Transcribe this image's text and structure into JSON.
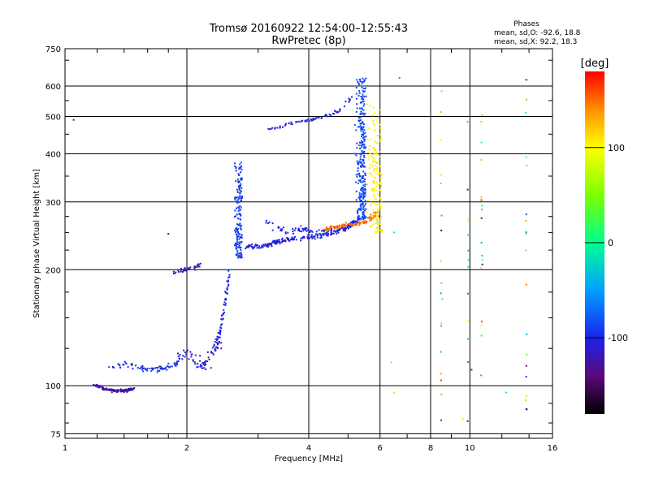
{
  "chart_data": {
    "type": "scatter",
    "title_line1": "Tromsø 20160922 12:54:00–12:55:43",
    "title_line2": "RwPretec (8p)",
    "stats": {
      "header": "Phases",
      "line_o": "mean, sd,O: -92.6, 18.8",
      "line_x": "mean, sd,X:  92.2, 18.3"
    },
    "xlabel": "Frequency [MHz]",
    "ylabel": "Stationary phase Virtual Height [km]",
    "x_scale": "log",
    "y_scale": "log",
    "xlim": [
      1,
      16
    ],
    "ylim": [
      73,
      750
    ],
    "x_ticks": [
      {
        "value": 1,
        "label": "1"
      },
      {
        "value": 2,
        "label": "2"
      },
      {
        "value": 4,
        "label": "4"
      },
      {
        "value": 6,
        "label": "6"
      },
      {
        "value": 8,
        "label": "8"
      },
      {
        "value": 10,
        "label": "10"
      },
      {
        "value": 16,
        "label": "16"
      }
    ],
    "y_ticks": [
      {
        "value": 75,
        "label": "75"
      },
      {
        "value": 100,
        "label": "100"
      },
      {
        "value": 200,
        "label": "200"
      },
      {
        "value": 300,
        "label": "300"
      },
      {
        "value": 400,
        "label": "400"
      },
      {
        "value": 500,
        "label": "500"
      },
      {
        "value": 600,
        "label": "600"
      },
      {
        "value": 750,
        "label": "750"
      }
    ],
    "x_grid": [
      1,
      2,
      4,
      6,
      8,
      10,
      16
    ],
    "y_grid": [
      75,
      100,
      200,
      300,
      400,
      500,
      600,
      750
    ],
    "grid": true,
    "colorbar": {
      "label": "deg",
      "min": -180,
      "max": 180,
      "ticks": [
        {
          "value": 100,
          "label": "100"
        },
        {
          "value": 0,
          "label": "0"
        },
        {
          "value": -100,
          "label": "-100"
        }
      ],
      "stops": [
        {
          "value": -180,
          "color": "#000000"
        },
        {
          "value": -140,
          "color": "#5a0a78"
        },
        {
          "value": -100,
          "color": "#1a22ee"
        },
        {
          "value": -50,
          "color": "#00a0ff"
        },
        {
          "value": 0,
          "color": "#00ff90"
        },
        {
          "value": 50,
          "color": "#7cff00"
        },
        {
          "value": 100,
          "color": "#ffff00"
        },
        {
          "value": 140,
          "color": "#ff9000"
        },
        {
          "value": 180,
          "color": "#ff0000"
        }
      ]
    },
    "clusters": [
      {
        "name": "low-e",
        "kind": "line",
        "phase": -125,
        "x": [
          1.18,
          1.25,
          1.32,
          1.4,
          1.48
        ],
        "y": [
          101,
          98,
          97,
          97,
          98
        ],
        "n": 130,
        "xj": 0.012,
        "yj": 0.012
      },
      {
        "name": "e-rise-a",
        "kind": "line",
        "phase": -95,
        "x": [
          1.3,
          1.4,
          1.5,
          1.6,
          1.7,
          1.8,
          1.9
        ],
        "y": [
          112,
          114,
          112,
          110,
          110,
          112,
          115
        ],
        "n": 75,
        "xj": 0.02,
        "yj": 0.025
      },
      {
        "name": "e-rise-b",
        "kind": "line",
        "phase": -110,
        "x": [
          1.9,
          2.0,
          2.1,
          2.2,
          2.3,
          2.4
        ],
        "y": [
          118,
          122,
          116,
          112,
          120,
          130
        ],
        "n": 70,
        "xj": 0.03,
        "yj": 0.05
      },
      {
        "name": "e-cusp",
        "kind": "line",
        "phase": -100,
        "x": [
          2.3,
          2.4,
          2.45,
          2.5,
          2.55
        ],
        "y": [
          125,
          135,
          150,
          170,
          200
        ],
        "n": 55,
        "xj": 0.01,
        "yj": 0.04
      },
      {
        "name": "es-200",
        "kind": "line",
        "phase": -120,
        "x": [
          1.85,
          1.95,
          2.05,
          2.15
        ],
        "y": [
          197,
          200,
          202,
          205
        ],
        "n": 40,
        "xj": 0.015,
        "yj": 0.02
      },
      {
        "name": "f1-cusp",
        "kind": "cloud",
        "phase": -90,
        "x": [
          2.55,
          2.75
        ],
        "y": [
          215,
          380
        ],
        "n": 170
      },
      {
        "name": "f-trace",
        "kind": "line",
        "phase": -105,
        "x": [
          2.8,
          3.1,
          3.4,
          3.8,
          4.2,
          4.6,
          5.0,
          5.3
        ],
        "y": [
          230,
          230,
          238,
          242,
          244,
          250,
          258,
          270
        ],
        "n": 220,
        "xj": 0.015,
        "yj": 0.02
      },
      {
        "name": "f-upper-a",
        "kind": "line",
        "phase": -100,
        "x": [
          3.1,
          3.5,
          3.9,
          4.3,
          4.7
        ],
        "y": [
          270,
          250,
          255,
          250,
          255
        ],
        "n": 60,
        "xj": 0.02,
        "yj": 0.03
      },
      {
        "name": "f-cusp-o",
        "kind": "cloud",
        "phase": -85,
        "x": [
          5.05,
          5.55
        ],
        "y": [
          270,
          630
        ],
        "n": 280
      },
      {
        "name": "f-upper-b",
        "kind": "line",
        "phase": -105,
        "x": [
          3.2,
          3.6,
          4.0,
          4.4,
          4.8,
          5.1
        ],
        "y": [
          463,
          480,
          488,
          500,
          520,
          560
        ],
        "n": 70,
        "xj": 0.015,
        "yj": 0.015
      },
      {
        "name": "x-low",
        "kind": "line",
        "phase": 150,
        "x": [
          4.4,
          4.8,
          5.2,
          5.6,
          5.9
        ],
        "y": [
          255,
          260,
          263,
          268,
          280
        ],
        "n": 110,
        "xj": 0.025,
        "yj": 0.02
      },
      {
        "name": "x-yellow",
        "kind": "cloud",
        "phase": 105,
        "x": [
          5.3,
          6.1
        ],
        "y": [
          250,
          540
        ],
        "n": 150
      },
      {
        "name": "scatter-high-freq",
        "kind": "scatter",
        "phase": 20,
        "x": [
          8.5,
          14
        ],
        "y": [
          80,
          640
        ],
        "n": 70
      }
    ],
    "markers": [
      {
        "x": 6.7,
        "y": 630,
        "phase": 160
      },
      {
        "x": 6.5,
        "y": 250,
        "phase": -10
      },
      {
        "x": 6.4,
        "y": 115,
        "phase": 40
      },
      {
        "x": 6.5,
        "y": 96,
        "phase": 120
      },
      {
        "x": 1.05,
        "y": 490,
        "phase": -110
      },
      {
        "x": 1.8,
        "y": 248,
        "phase": -130
      },
      {
        "x": 9.6,
        "y": 82,
        "phase": 110
      },
      {
        "x": 10.1,
        "y": 110,
        "phase": -110
      },
      {
        "x": 12.3,
        "y": 96,
        "phase": -20
      }
    ]
  }
}
